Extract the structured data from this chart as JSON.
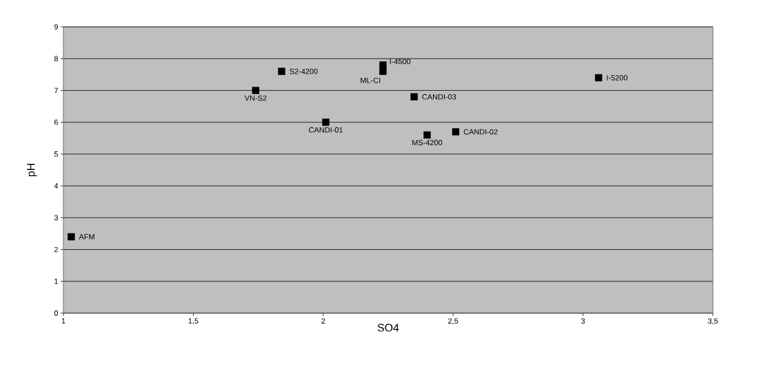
{
  "chart_data": {
    "type": "scatter",
    "xlabel": "SO4",
    "ylabel": "pH",
    "x": [
      1.03,
      1.74,
      1.84,
      2.01,
      2.23,
      2.23,
      2.35,
      2.4,
      2.51,
      3.06
    ],
    "values": [
      2.4,
      7.0,
      7.6,
      6.0,
      7.8,
      7.6,
      6.8,
      5.6,
      5.7,
      7.4
    ],
    "color": "#000000",
    "marker": "square",
    "grid": "y",
    "xlim": [
      1,
      3.5
    ],
    "ylim": [
      0,
      9
    ],
    "xticks": [
      1,
      {
        "value": 1.5,
        "label": "1,5"
      },
      2,
      {
        "value": 2.5,
        "label": "2,5"
      },
      3,
      {
        "value": 3.5,
        "label": "3,5"
      }
    ],
    "yticks": [
      0,
      1,
      2,
      3,
      4,
      5,
      6,
      7,
      8,
      9
    ],
    "annotations": [
      {
        "text": "AFM",
        "x": 1.03,
        "y": 2.4
      },
      {
        "text": "VN-S2",
        "x": 1.74,
        "y": 7.0
      },
      {
        "text": "S2-4200",
        "x": 1.84,
        "y": 7.6
      },
      {
        "text": "CANDI-01",
        "x": 2.01,
        "y": 6.0
      },
      {
        "text": "I-4500",
        "x": 2.23,
        "y": 7.8
      },
      {
        "text": "ML-CI",
        "x": 2.23,
        "y": 7.6
      },
      {
        "text": "CANDI-03",
        "x": 2.35,
        "y": 6.8
      },
      {
        "text": "MS-4200",
        "x": 2.4,
        "y": 5.6
      },
      {
        "text": "CANDI-02",
        "x": 2.51,
        "y": 5.7
      },
      {
        "text": "I-5200",
        "x": 3.06,
        "y": 7.4
      }
    ]
  }
}
